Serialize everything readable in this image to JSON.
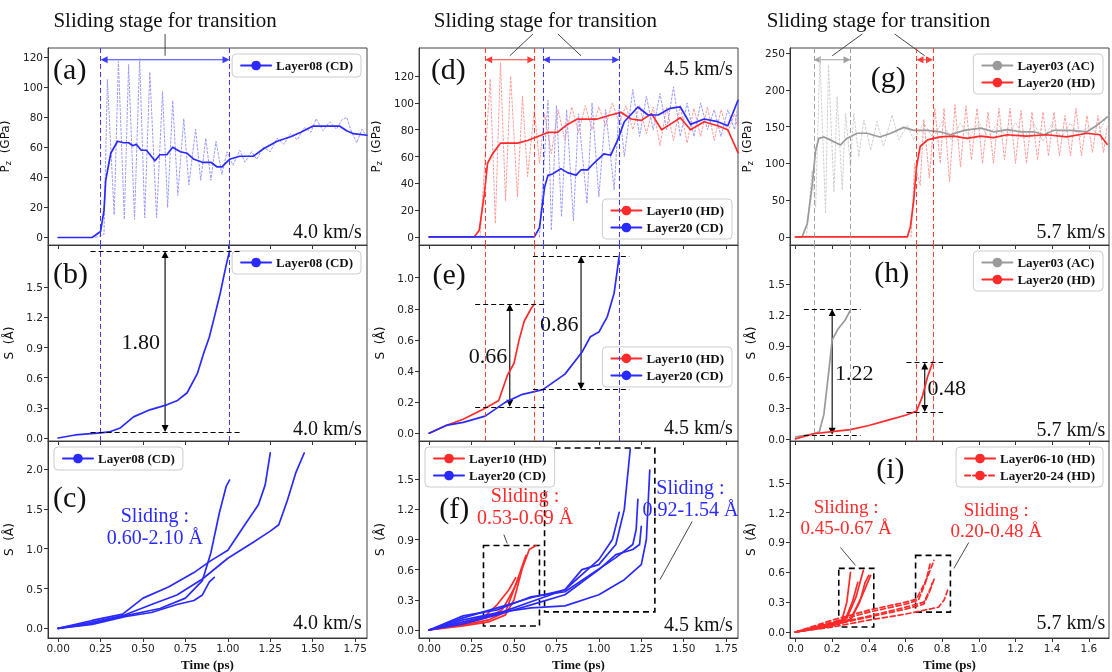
{
  "chart_data": [
    {
      "type": "line",
      "title": "Sliding stage for transition",
      "ylabel": "P$_{z}$  (GPa)",
      "xlim": [
        -0.06,
        1.82
      ],
      "ylim": [
        -5,
        126
      ],
      "tick_labels": "y",
      "legend": "top right",
      "xticks": [
        0,
        0.25,
        0.5,
        0.75,
        1,
        1.25,
        1.5,
        1.75
      ],
      "yticks": [
        0,
        20,
        40,
        60,
        80,
        100,
        120
      ],
      "series": [
        {
          "color": "#9a9aff",
          "line_style": "dotted",
          "x": [
            0.22,
            0.27,
            0.29,
            0.33,
            0.355,
            0.39,
            0.415,
            0.45,
            0.48,
            0.51,
            0.54,
            0.58,
            0.615,
            0.645,
            0.675,
            0.705,
            0.74,
            0.77,
            0.81,
            0.84,
            0.87,
            0.9,
            0.93,
            0.965,
            0.995,
            1.03,
            1.07,
            1.1,
            1.14,
            1.17,
            1.21,
            1.25,
            1.29,
            1.33,
            1.37,
            1.41,
            1.45,
            1.49,
            1.52,
            1.56,
            1.6,
            1.64,
            1.67,
            1.7,
            1.73,
            1.76,
            1.79,
            1.82
          ],
          "values": [
            0,
            2,
            105,
            15,
            117,
            12,
            115,
            12,
            119,
            13,
            110,
            13,
            97,
            20,
            91,
            28,
            79,
            35,
            72,
            38,
            66,
            38,
            64,
            42,
            57,
            48,
            58,
            50,
            57,
            52,
            60,
            57,
            66,
            62,
            69,
            65,
            73,
            70,
            79,
            71,
            77,
            72,
            78,
            80,
            70,
            63,
            72,
            67
          ]
        },
        {
          "name": "Layer08 (CD)",
          "color": "#2a2aff",
          "x": [
            0,
            0.2,
            0.25,
            0.27,
            0.28,
            0.31,
            0.35,
            0.385,
            0.415,
            0.44,
            0.46,
            0.49,
            0.52,
            0.57,
            0.6,
            0.64,
            0.675,
            0.72,
            0.76,
            0.8,
            0.85,
            0.9,
            0.935,
            0.965,
            1.01,
            1.07,
            1.15,
            1.21,
            1.29,
            1.37,
            1.43,
            1.5,
            1.58,
            1.66,
            1.7,
            1.74,
            1.82
          ],
          "values": [
            0,
            0,
            4,
            18,
            38,
            56,
            64,
            63,
            63,
            61,
            62,
            58,
            58,
            51,
            55,
            55,
            60,
            57,
            56,
            52,
            50,
            50,
            47,
            47,
            52,
            54,
            54,
            59,
            64,
            67,
            70,
            74,
            74,
            74,
            71,
            69,
            68
          ]
        }
      ],
      "ref_lines": [
        {
          "axis": "x",
          "value": 0.25,
          "color": "#3b3bff",
          "line_style": "dashed"
        },
        {
          "axis": "x",
          "value": 1.01,
          "color": "#3b3bff",
          "line_style": "dashed"
        }
      ],
      "annotations": [
        "(a)",
        "4.0 km/s"
      ]
    },
    {
      "type": "line",
      "ylabel": "S  (Å)",
      "xlim": [
        -0.06,
        1.82
      ],
      "ylim": [
        -0.03,
        1.92
      ],
      "tick_labels": "y",
      "legend": "top right",
      "xticks": [
        0,
        0.25,
        0.5,
        0.75,
        1,
        1.25,
        1.5,
        1.75
      ],
      "yticks": [
        {
          "value": 0,
          "label": "0.0"
        },
        0.3,
        0.6,
        0.9,
        1.2,
        1.5
      ],
      "series": [
        {
          "name": "Layer08 (CD)",
          "color": "#2a2aff",
          "x": [
            0,
            0.1,
            0.25,
            0.3,
            0.366,
            0.444,
            0.54,
            0.64,
            0.7,
            0.76,
            0.82,
            0.857,
            0.89,
            0.92,
            0.955,
            0.99,
            1.01
          ],
          "values": [
            0,
            0.03,
            0.05,
            0.06,
            0.1,
            0.21,
            0.28,
            0.33,
            0.37,
            0.45,
            0.64,
            0.84,
            1.0,
            1.2,
            1.44,
            1.72,
            1.86
          ]
        }
      ],
      "ref_lines": [
        {
          "axis": "x",
          "value": 0.25,
          "color": "#3b3bff",
          "line_style": "dashed"
        },
        {
          "axis": "x",
          "value": 1.01,
          "color": "#3b3bff",
          "line_style": "dashed"
        },
        {
          "axis": "y",
          "value": 0.06,
          "color": "#000000",
          "line_style": "dashed"
        },
        {
          "axis": "y",
          "value": 1.86,
          "color": "#000000",
          "line_style": "dashed"
        }
      ],
      "annotations": [
        "(b)",
        "1.80",
        "4.0 km/s"
      ]
    },
    {
      "type": "line",
      "xlabel": "Time (ps)",
      "ylabel": "S  (Å)",
      "xlim": [
        -0.06,
        1.82
      ],
      "ylim": [
        -0.12,
        2.35
      ],
      "legend": "top left",
      "xticks": [
        {
          "value": 0,
          "label": "0.00"
        },
        0.25,
        {
          "value": 0.5,
          "label": "0.50"
        },
        0.75,
        {
          "value": 1,
          "label": "1.00"
        },
        1.25,
        {
          "value": 1.5,
          "label": "1.50"
        },
        1.75
      ],
      "yticks": [
        {
          "value": 0,
          "label": "0.0"
        },
        0.5,
        {
          "value": 1,
          "label": "1.0"
        },
        1.5,
        {
          "value": 2,
          "label": "2.0"
        }
      ],
      "series": [
        {
          "name": "Layer08 (CD)",
          "color": "#2a2aff",
          "x": [
            0,
            0.2,
            0.4,
            0.6,
            0.75,
            0.85,
            0.9,
            0.95,
            0.99,
            1.01
          ],
          "values": [
            0,
            0.06,
            0.16,
            0.25,
            0.38,
            0.6,
            0.95,
            1.45,
            1.78,
            1.86
          ]
        },
        {
          "color": "#2a2aff",
          "x": [
            0,
            0.2,
            0.38,
            0.5,
            0.65,
            0.8,
            0.9,
            1.0,
            1.1,
            1.18,
            1.22,
            1.25
          ],
          "values": [
            0,
            0.1,
            0.18,
            0.38,
            0.52,
            0.7,
            0.85,
            0.98,
            1.3,
            1.55,
            1.8,
            2.2
          ]
        },
        {
          "color": "#2a2aff",
          "x": [
            0,
            0.2,
            0.38,
            0.55,
            0.7,
            0.85,
            1.0,
            1.15,
            1.25,
            1.3,
            1.35,
            1.4,
            1.45
          ],
          "values": [
            0,
            0.08,
            0.16,
            0.3,
            0.42,
            0.62,
            0.88,
            1.08,
            1.22,
            1.3,
            1.6,
            1.95,
            2.2
          ]
        },
        {
          "color": "#2a2aff",
          "x": [
            0,
            0.2,
            0.4,
            0.55,
            0.7,
            0.8,
            0.85,
            0.89,
            0.92
          ],
          "values": [
            0,
            0.05,
            0.15,
            0.2,
            0.3,
            0.35,
            0.42,
            0.58,
            0.64
          ]
        }
      ],
      "annotations": [
        "(c)",
        "Sliding :\n0.60-2.10 Å",
        "4.0 km/s"
      ]
    },
    {
      "type": "line",
      "title": "Sliding stage for transition",
      "ylabel": "P$_{z}$  (GPa)",
      "xlim": [
        -0.06,
        1.82
      ],
      "ylim": [
        -6,
        141
      ],
      "tick_labels": "y",
      "legend": "bottom right",
      "xticks": [
        0,
        0.25,
        0.5,
        0.75,
        1,
        1.25,
        1.5,
        1.75
      ],
      "yticks": [
        0,
        20,
        40,
        60,
        80,
        100,
        120
      ],
      "series": [
        {
          "color": "#ff9a9a",
          "line_style": "dotted",
          "x": [
            0.3,
            0.33,
            0.36,
            0.39,
            0.42,
            0.45,
            0.48,
            0.52,
            0.55,
            0.58,
            0.62,
            0.65,
            0.68,
            0.72,
            0.76,
            0.8,
            0.84,
            0.88,
            0.92,
            0.96,
            1.0,
            1.04,
            1.08,
            1.12,
            1.16,
            1.2,
            1.24,
            1.28,
            1.32,
            1.36,
            1.4,
            1.44,
            1.48,
            1.52,
            1.56,
            1.6,
            1.64,
            1.68,
            1.72,
            1.76,
            1.8,
            1.82
          ],
          "values": [
            0,
            60,
            118,
            10,
            130,
            27,
            120,
            30,
            105,
            45,
            95,
            55,
            92,
            62,
            95,
            72,
            97,
            78,
            98,
            80,
            97,
            83,
            100,
            85,
            98,
            80,
            98,
            77,
            97,
            68,
            97,
            72,
            98,
            70,
            96,
            75,
            97,
            72,
            95,
            78,
            92,
            80
          ]
        },
        {
          "color": "#9a9aff",
          "line_style": "dotted",
          "x": [
            0.65,
            0.7,
            0.72,
            0.75,
            0.78,
            0.81,
            0.85,
            0.88,
            0.93,
            0.96,
            1.0,
            1.04,
            1.09,
            1.12,
            1.15,
            1.2,
            1.24,
            1.28,
            1.32,
            1.36,
            1.4,
            1.44,
            1.48,
            1.52,
            1.56,
            1.6,
            1.64,
            1.68,
            1.72,
            1.76,
            1.8,
            1.82
          ],
          "values": [
            0,
            102,
            5,
            98,
            15,
            95,
            12,
            92,
            25,
            100,
            30,
            95,
            35,
            98,
            60,
            110,
            75,
            105,
            80,
            107,
            80,
            112,
            75,
            100,
            75,
            100,
            80,
            95,
            75,
            95,
            80,
            100
          ]
        },
        {
          "name": "Layer10 (HD)",
          "color": "#ff2a2a",
          "x": [
            0,
            0.265,
            0.295,
            0.325,
            0.344,
            0.373,
            0.42,
            0.48,
            0.52,
            0.58,
            0.64,
            0.7,
            0.756,
            0.815,
            0.874,
            0.99,
            1.07,
            1.13,
            1.19,
            1.25,
            1.31,
            1.37,
            1.42,
            1.48,
            1.54,
            1.62,
            1.7,
            1.76,
            1.82
          ],
          "values": [
            0,
            0,
            5,
            32,
            55,
            62,
            70,
            70,
            70,
            72,
            75,
            78,
            78,
            84,
            88,
            88,
            91,
            93,
            88,
            87,
            92,
            80,
            84,
            89,
            80,
            86,
            83,
            80,
            63
          ]
        },
        {
          "name": "Layer20 (CD)",
          "color": "#2a2aff",
          "x": [
            0,
            0.62,
            0.65,
            0.68,
            0.7,
            0.727,
            0.776,
            0.815,
            0.865,
            0.894,
            0.933,
            0.97,
            1.03,
            1.07,
            1.11,
            1.15,
            1.23,
            1.29,
            1.35,
            1.42,
            1.48,
            1.54,
            1.62,
            1.7,
            1.76,
            1.82
          ],
          "values": [
            0,
            0,
            7,
            37,
            46,
            47,
            51,
            48,
            46,
            50,
            50,
            55,
            62,
            61,
            72,
            86,
            97,
            91,
            91,
            96,
            97,
            84,
            88,
            86,
            83,
            102
          ]
        }
      ],
      "ref_lines": [
        {
          "axis": "x",
          "value": 0.33,
          "color": "#ff3b3b",
          "line_style": "dashed"
        },
        {
          "axis": "x",
          "value": 0.62,
          "color": "#ff3b3b",
          "line_style": "dashed"
        },
        {
          "axis": "x",
          "value": 0.67,
          "color": "#3b3bff",
          "line_style": "dashed"
        },
        {
          "axis": "x",
          "value": 1.12,
          "color": "#3b3bff",
          "line_style": "dashed"
        }
      ],
      "annotations": [
        "(d)",
        "4.5 km/s"
      ]
    },
    {
      "type": "line",
      "ylabel": "S  (Å)",
      "xlim": [
        -0.06,
        1.82
      ],
      "ylim": [
        -0.05,
        1.21
      ],
      "tick_labels": "y",
      "legend": "right",
      "xticks": [
        0,
        0.25,
        0.5,
        0.75,
        1,
        1.25,
        1.5,
        1.75
      ],
      "yticks": [
        {
          "value": 0,
          "label": "0.0"
        },
        0.2,
        0.4,
        0.6,
        0.8,
        {
          "value": 1,
          "label": "1.0"
        }
      ],
      "series": [
        {
          "name": "Layer10 (HD)",
          "color": "#ff2a2a",
          "x": [
            0,
            0.1,
            0.2,
            0.33,
            0.41,
            0.46,
            0.5,
            0.53,
            0.56,
            0.6,
            0.62
          ],
          "values": [
            0,
            0.05,
            0.09,
            0.16,
            0.21,
            0.37,
            0.45,
            0.6,
            0.72,
            0.8,
            0.83
          ]
        },
        {
          "name": "Layer20 (CD)",
          "color": "#2a2aff",
          "x": [
            0,
            0.1,
            0.2,
            0.33,
            0.45,
            0.55,
            0.67,
            0.8,
            0.9,
            0.95,
            1.0,
            1.05,
            1.09,
            1.12
          ],
          "values": [
            0,
            0.05,
            0.07,
            0.11,
            0.2,
            0.25,
            0.28,
            0.38,
            0.52,
            0.62,
            0.65,
            0.75,
            0.9,
            1.14
          ]
        }
      ],
      "ref_lines": [
        {
          "axis": "x",
          "value": 0.33,
          "color": "#ff3b3b",
          "line_style": "dashed"
        },
        {
          "axis": "x",
          "value": 0.62,
          "color": "#ff3b3b",
          "line_style": "dashed"
        },
        {
          "axis": "x",
          "value": 0.67,
          "color": "#3b3bff",
          "line_style": "dashed"
        },
        {
          "axis": "x",
          "value": 1.12,
          "color": "#3b3bff",
          "line_style": "dashed"
        },
        {
          "axis": "y",
          "value": 0.17,
          "color": "#000000",
          "line_style": "dashed"
        },
        {
          "axis": "y",
          "value": 0.83,
          "color": "#000000",
          "line_style": "dashed"
        },
        {
          "axis": "y",
          "value": 0.28,
          "color": "#000000",
          "line_style": "dashed"
        },
        {
          "axis": "y",
          "value": 1.14,
          "color": "#000000",
          "line_style": "dashed"
        }
      ],
      "annotations": [
        "(e)",
        "0.66",
        "0.86",
        "4.5 km/s"
      ]
    },
    {
      "type": "line",
      "xlabel": "Time (ps)",
      "ylabel": "S  (Å)",
      "xlim": [
        -0.06,
        1.82
      ],
      "ylim": [
        -0.08,
        1.88
      ],
      "legend": "top left",
      "xticks": [
        {
          "value": 0,
          "label": "0.00"
        },
        0.25,
        {
          "value": 0.5,
          "label": "0.50"
        },
        0.75,
        {
          "value": 1,
          "label": "1.00"
        },
        1.25,
        {
          "value": 1.5,
          "label": "1.50"
        },
        1.75
      ],
      "yticks": [
        {
          "value": 0,
          "label": "0.0"
        },
        0.3,
        0.6,
        0.9,
        1.2,
        1.5
      ],
      "series": [
        {
          "name": "Layer10 (HD)",
          "color": "#ff2a2a",
          "x": [
            0,
            0.2,
            0.33,
            0.4,
            0.47,
            0.51
          ],
          "values": [
            0,
            0.07,
            0.14,
            0.25,
            0.4,
            0.52
          ]
        },
        {
          "color": "#ff2a2a",
          "x": [
            0,
            0.2,
            0.35,
            0.43,
            0.49,
            0.53
          ],
          "values": [
            0,
            0.06,
            0.13,
            0.2,
            0.38,
            0.52
          ]
        },
        {
          "color": "#ff2a2a",
          "x": [
            0,
            0.2,
            0.35,
            0.45,
            0.51,
            0.57
          ],
          "values": [
            0,
            0.05,
            0.1,
            0.18,
            0.45,
            0.74
          ]
        },
        {
          "color": "#ff2a2a",
          "x": [
            0,
            0.2,
            0.35,
            0.45,
            0.5,
            0.55,
            0.59,
            0.63
          ],
          "values": [
            0,
            0.04,
            0.08,
            0.15,
            0.3,
            0.62,
            0.8,
            0.84
          ]
        },
        {
          "name": "Layer20 (CD)",
          "color": "#2a2aff",
          "x": [
            0,
            0.2,
            0.4,
            0.6,
            0.8,
            0.9,
            1.0,
            1.1,
            1.15,
            1.185
          ],
          "values": [
            0,
            0.12,
            0.22,
            0.32,
            0.4,
            0.6,
            0.65,
            0.85,
            1.2,
            1.8
          ]
        },
        {
          "color": "#2a2aff",
          "x": [
            0,
            0.2,
            0.4,
            0.6,
            0.8,
            1.0,
            1.15,
            1.25,
            1.28,
            1.3
          ],
          "values": [
            0,
            0.1,
            0.17,
            0.22,
            0.24,
            0.35,
            0.5,
            0.65,
            0.9,
            1.59
          ]
        },
        {
          "color": "#2a2aff",
          "x": [
            0,
            0.2,
            0.4,
            0.6,
            0.8,
            0.9,
            1.0,
            1.08,
            1.12
          ],
          "values": [
            0,
            0.08,
            0.16,
            0.28,
            0.4,
            0.55,
            0.7,
            0.9,
            1.17
          ]
        },
        {
          "color": "#2a2aff",
          "x": [
            0,
            0.2,
            0.4,
            0.6,
            0.8,
            0.95,
            1.1,
            1.2,
            1.22,
            1.23
          ],
          "values": [
            0,
            0.14,
            0.2,
            0.33,
            0.38,
            0.55,
            0.72,
            0.85,
            1.0,
            1.3
          ]
        },
        {
          "color": "#2a2aff",
          "x": [
            0,
            0.2,
            0.4,
            0.6,
            0.8,
            1.0,
            1.1,
            1.2,
            1.24,
            1.25
          ],
          "values": [
            0,
            0.06,
            0.15,
            0.25,
            0.35,
            0.6,
            0.75,
            0.8,
            0.85,
            1.03
          ]
        }
      ],
      "annotations": [
        "(f)",
        "Sliding :\n0.53-0.69 Å",
        "Sliding :\n0.92-1.54 Å",
        "4.5 km/s"
      ]
    },
    {
      "type": "line",
      "title": "Sliding stage for transition",
      "ylabel": "P$_{z}$  (GPa)",
      "xlim": [
        -0.03,
        1.71
      ],
      "ylim": [
        -11,
        257
      ],
      "tick_labels": "y",
      "legend": "top right",
      "xticks": [
        0,
        0.2,
        0.4,
        0.6,
        0.8,
        1,
        1.2,
        1.4,
        1.6
      ],
      "yticks": [
        0,
        50,
        100,
        150,
        200,
        250
      ],
      "series": [
        {
          "color": "#cfcfcf",
          "line_style": "dotted",
          "x": [
            0.06,
            0.09,
            0.11,
            0.133,
            0.164,
            0.18,
            0.21,
            0.227,
            0.255,
            0.273,
            0.3,
            0.318,
            0.345,
            0.373,
            0.41,
            0.445,
            0.48,
            0.527,
            0.564,
            0.61,
            0.645,
            0.7,
            0.75,
            0.8,
            0.85,
            0.9,
            0.95,
            1.0,
            1.05,
            1.1,
            1.15,
            1.2,
            1.25,
            1.3,
            1.35,
            1.4,
            1.45,
            1.5,
            1.55,
            1.6,
            1.65,
            1.7
          ],
          "values": [
            0,
            90,
            40,
            245,
            32,
            234,
            61,
            191,
            64,
            168,
            95,
            168,
            109,
            159,
            118,
            157,
            123,
            166,
            132,
            152,
            132,
            155,
            135,
            157,
            132,
            155,
            135,
            157,
            135,
            155,
            135,
            155,
            135,
            155,
            130,
            155,
            135,
            155,
            135,
            150,
            140,
            165
          ]
        },
        {
          "color": "#ff9a9a",
          "line_style": "dotted",
          "x": [
            0.63,
            0.65,
            0.68,
            0.7,
            0.73,
            0.76,
            0.79,
            0.81,
            0.84,
            0.87,
            0.9,
            0.93,
            0.96,
            0.99,
            1.02,
            1.05,
            1.08,
            1.11,
            1.14,
            1.17,
            1.2,
            1.23,
            1.26,
            1.29,
            1.32,
            1.35,
            1.38,
            1.41,
            1.44,
            1.47,
            1.5,
            1.53,
            1.56,
            1.59,
            1.62,
            1.65,
            1.68,
            1.7
          ],
          "values": [
            0,
            100,
            70,
            160,
            80,
            175,
            100,
            175,
            75,
            180,
            95,
            178,
            105,
            175,
            100,
            170,
            100,
            175,
            105,
            175,
            100,
            172,
            100,
            170,
            105,
            170,
            110,
            170,
            110,
            165,
            110,
            175,
            110,
            165,
            115,
            165,
            115,
            150
          ]
        },
        {
          "name": "Layer03 (AC)",
          "color": "#9a9a9a",
          "x": [
            0,
            0.036,
            0.064,
            0.09,
            0.11,
            0.127,
            0.155,
            0.19,
            0.245,
            0.28,
            0.336,
            0.39,
            0.46,
            0.52,
            0.59,
            0.645,
            0.72,
            0.79,
            0.845,
            0.92,
            1.01,
            1.08,
            1.155,
            1.227,
            1.3,
            1.355,
            1.41,
            1.5,
            1.59,
            1.645,
            1.7
          ],
          "values": [
            0,
            0,
            18,
            68,
            118,
            134,
            136,
            132,
            125,
            134,
            141,
            141,
            136,
            141,
            149,
            145,
            145,
            143,
            139,
            145,
            148,
            143,
            146,
            143,
            143,
            139,
            145,
            145,
            143,
            152,
            163
          ]
        },
        {
          "name": "Layer20 (HD)",
          "color": "#ff2a2a",
          "x": [
            0,
            0.61,
            0.627,
            0.645,
            0.66,
            0.68,
            0.72,
            0.79,
            0.864,
            0.936,
            1.01,
            1.08,
            1.155,
            1.26,
            1.37,
            1.48,
            1.59,
            1.66,
            1.7
          ],
          "values": [
            0,
            0,
            14,
            50,
            95,
            123,
            132,
            136,
            137,
            134,
            137,
            135,
            139,
            137,
            139,
            136,
            141,
            139,
            126
          ]
        }
      ],
      "ref_lines": [
        {
          "axis": "x",
          "value": 0.1,
          "color": "#a0a0a0",
          "line_style": "dashed"
        },
        {
          "axis": "x",
          "value": 0.3,
          "color": "#a0a0a0",
          "line_style": "dashed"
        },
        {
          "axis": "x",
          "value": 0.66,
          "color": "#ff3b3b",
          "line_style": "dashed"
        },
        {
          "axis": "x",
          "value": 0.75,
          "color": "#ff3b3b",
          "line_style": "dashed"
        }
      ],
      "annotations": [
        "(g)",
        "5.7 km/s"
      ]
    },
    {
      "type": "line",
      "ylabel": "S  (Å)",
      "xlim": [
        -0.03,
        1.71
      ],
      "ylim": [
        -0.02,
        1.88
      ],
      "tick_labels": "y",
      "legend": "top right",
      "xticks": [
        0,
        0.2,
        0.4,
        0.6,
        0.8,
        1,
        1.2,
        1.4,
        1.6
      ],
      "yticks": [
        {
          "value": 0,
          "label": "0.0"
        },
        0.3,
        0.6,
        0.9,
        1.2,
        1.5
      ],
      "series": [
        {
          "name": "Layer03 (AC)",
          "color": "#9a9a9a",
          "x": [
            0,
            0.1,
            0.13,
            0.155,
            0.18,
            0.2,
            0.23,
            0.27,
            0.3
          ],
          "values": [
            0.02,
            0.05,
            0.07,
            0.24,
            0.63,
            0.96,
            1.06,
            1.15,
            1.25
          ]
        },
        {
          "name": "Layer20 (HD)",
          "color": "#ff2a2a",
          "x": [
            0,
            0.1,
            0.2,
            0.3,
            0.4,
            0.5,
            0.6,
            0.66,
            0.69,
            0.72,
            0.75
          ],
          "values": [
            0,
            0.05,
            0.07,
            0.09,
            0.13,
            0.18,
            0.23,
            0.27,
            0.4,
            0.6,
            0.75
          ]
        }
      ],
      "ref_lines": [
        {
          "axis": "x",
          "value": 0.1,
          "color": "#a0a0a0",
          "line_style": "dashed"
        },
        {
          "axis": "x",
          "value": 0.3,
          "color": "#a0a0a0",
          "line_style": "dashed"
        },
        {
          "axis": "x",
          "value": 0.66,
          "color": "#ff3b3b",
          "line_style": "dashed"
        },
        {
          "axis": "x",
          "value": 0.75,
          "color": "#ff3b3b",
          "line_style": "dashed"
        },
        {
          "axis": "y",
          "value": 0.04,
          "color": "#000000",
          "line_style": "dashed"
        },
        {
          "axis": "y",
          "value": 1.26,
          "color": "#000000",
          "line_style": "dashed"
        },
        {
          "axis": "y",
          "value": 0.26,
          "color": "#000000",
          "line_style": "dashed"
        },
        {
          "axis": "y",
          "value": 0.74,
          "color": "#000000",
          "line_style": "dashed"
        }
      ],
      "annotations": [
        "(h)",
        "1.22",
        "0.48",
        "5.7 km/s"
      ]
    },
    {
      "type": "line",
      "xlabel": "Time (ps)",
      "ylabel": "S  (Å)",
      "xlim": [
        -0.03,
        1.71
      ],
      "ylim": [
        -0.06,
        1.92
      ],
      "legend": "top right",
      "xticks": [
        {
          "value": 0,
          "label": "0.0"
        },
        0.2,
        0.4,
        0.6,
        0.8,
        {
          "value": 1,
          "label": "1.0"
        },
        1.2,
        1.4,
        1.6
      ],
      "yticks": [
        {
          "value": 0,
          "label": "0.0"
        },
        0.3,
        0.6,
        0.9,
        1.2,
        1.5
      ],
      "series": [
        {
          "name": "Layer06-10 (HD)",
          "color": "#ff2a2a",
          "x": [
            0,
            0.1,
            0.2,
            0.25,
            0.28,
            0.3
          ],
          "values": [
            0,
            0.03,
            0.06,
            0.1,
            0.3,
            0.6
          ]
        },
        {
          "color": "#ff2a2a",
          "x": [
            0,
            0.1,
            0.2,
            0.27,
            0.31,
            0.34
          ],
          "values": [
            0,
            0.04,
            0.08,
            0.12,
            0.3,
            0.5
          ]
        },
        {
          "color": "#ff2a2a",
          "x": [
            0,
            0.1,
            0.2,
            0.28,
            0.33,
            0.37
          ],
          "values": [
            0,
            0.05,
            0.09,
            0.14,
            0.35,
            0.62
          ]
        },
        {
          "color": "#ff2a2a",
          "x": [
            0,
            0.1,
            0.2,
            0.3,
            0.35,
            0.38,
            0.4
          ],
          "values": [
            0,
            0.03,
            0.06,
            0.12,
            0.3,
            0.5,
            0.57
          ]
        },
        {
          "color": "#ff2a2a",
          "x": [
            0,
            0.1,
            0.2,
            0.3,
            0.36,
            0.41
          ],
          "values": [
            0,
            0.04,
            0.07,
            0.13,
            0.35,
            0.57
          ]
        },
        {
          "name": "Layer20-24 (HD)",
          "color": "#ff2a2a",
          "line_style": "dashed",
          "x": [
            0,
            0.2,
            0.4,
            0.6,
            0.66,
            0.72,
            0.755
          ],
          "values": [
            0,
            0.12,
            0.22,
            0.3,
            0.33,
            0.55,
            0.72
          ]
        },
        {
          "color": "#ff2a2a",
          "line_style": "dashed",
          "x": [
            0,
            0.2,
            0.4,
            0.6,
            0.67,
            0.71,
            0.736
          ],
          "values": [
            0,
            0.1,
            0.2,
            0.28,
            0.32,
            0.5,
            0.7
          ]
        },
        {
          "color": "#ff2a2a",
          "line_style": "dashed",
          "x": [
            0,
            0.2,
            0.4,
            0.6,
            0.7,
            0.74,
            0.76
          ],
          "values": [
            0,
            0.08,
            0.16,
            0.25,
            0.3,
            0.45,
            0.55
          ]
        },
        {
          "color": "#ff2a2a",
          "line_style": "dashed",
          "x": [
            0,
            0.2,
            0.4,
            0.6,
            0.7,
            0.73,
            0.745
          ],
          "values": [
            0,
            0.07,
            0.15,
            0.23,
            0.28,
            0.4,
            0.49
          ]
        },
        {
          "color": "#ff2a2a",
          "line_style": "dashed",
          "x": [
            0,
            0.2,
            0.4,
            0.6,
            0.78,
            0.81,
            0.83
          ],
          "values": [
            0,
            0.05,
            0.12,
            0.18,
            0.25,
            0.32,
            0.42
          ]
        }
      ],
      "annotations": [
        "(i)",
        "Sliding :\n0.45-0.67 Å",
        "Sliding :\n0.20-0.48 Å",
        "5.7 km/s"
      ]
    }
  ]
}
